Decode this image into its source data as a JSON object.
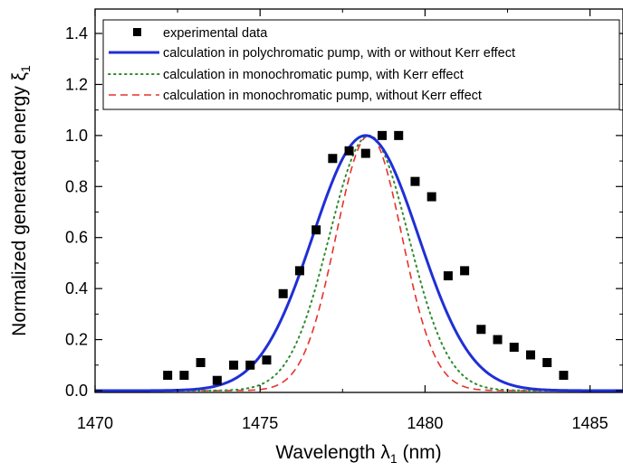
{
  "chart_data": {
    "type": "line",
    "title": "",
    "xlabel": "Wavelength λ",
    "xlabel_sub": "1",
    "xlabel_unit": " (nm)",
    "ylabel": "Normalized generated energy ξ",
    "ylabel_sub": "1",
    "xlim": [
      1470,
      1486
    ],
    "ylim": [
      -0.02,
      1.47
    ],
    "x_ticks": [
      1470,
      1475,
      1480,
      1485
    ],
    "x_tick_labels": [
      "1470",
      "1475",
      "1480",
      "1485"
    ],
    "y_ticks": [
      0.0,
      0.2,
      0.4,
      0.6,
      0.8,
      1.0,
      1.2,
      1.4
    ],
    "y_tick_labels": [
      "0.0",
      "0.2",
      "0.4",
      "0.6",
      "0.8",
      "1.0",
      "1.2",
      "1.4"
    ],
    "grid": false,
    "legend_position": "top",
    "series": [
      {
        "name": "experimental data",
        "style": "scatter-square",
        "color": "#000000",
        "x": [
          1472.2,
          1472.7,
          1473.2,
          1473.7,
          1474.2,
          1474.7,
          1475.2,
          1475.7,
          1476.2,
          1476.7,
          1477.2,
          1477.7,
          1478.2,
          1478.7,
          1479.2,
          1479.7,
          1480.2,
          1480.7,
          1481.2,
          1481.7,
          1482.2,
          1482.7,
          1483.2,
          1483.7,
          1484.2
        ],
        "y": [
          0.06,
          0.06,
          0.11,
          0.04,
          0.1,
          0.1,
          0.12,
          0.38,
          0.47,
          0.63,
          0.91,
          0.94,
          0.93,
          1.0,
          1.0,
          0.82,
          0.76,
          0.45,
          0.47,
          0.24,
          0.2,
          0.17,
          0.14,
          0.11,
          0.06
        ]
      },
      {
        "name": "calculation in polychromatic pump, with or without Kerr effect",
        "style": "solid",
        "color": "#1f2fd6",
        "center": 1478.2,
        "sigma": 1.6,
        "peak": 1.0
      },
      {
        "name": "calculation in monochromatic pump, with Kerr effect",
        "style": "dotted",
        "color": "#2e8b2e",
        "center": 1478.3,
        "sigma": 1.2,
        "peak": 1.0
      },
      {
        "name": "calculation in monochromatic pump, without Kerr effect",
        "style": "dashed",
        "color": "#e8312a",
        "center": 1478.3,
        "sigma": 1.0,
        "peak": 1.0
      }
    ]
  }
}
